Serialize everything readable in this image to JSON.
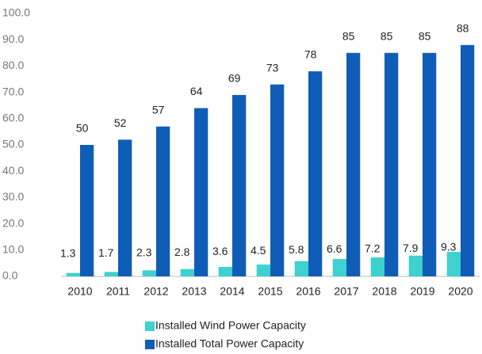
{
  "chart_data": {
    "type": "bar",
    "categories": [
      "2010",
      "2011",
      "2012",
      "2013",
      "2014",
      "2015",
      "2016",
      "2017",
      "2018",
      "2019",
      "2020"
    ],
    "series": [
      {
        "name": "Installed Wind Power Capacity",
        "color": "#3dd1cf",
        "values": [
          1.3,
          1.7,
          2.3,
          2.8,
          3.6,
          4.5,
          5.8,
          6.6,
          7.2,
          7.9,
          9.3
        ]
      },
      {
        "name": "Installed Total Power Capacity",
        "color": "#0f5db7",
        "values": [
          50,
          52,
          57,
          64,
          69,
          73,
          78,
          85,
          85,
          85,
          88
        ]
      }
    ],
    "ylim": [
      0,
      100
    ],
    "yticks": [
      {
        "value": 0,
        "label": "0.0"
      },
      {
        "value": 10,
        "label": "10.0"
      },
      {
        "value": 20,
        "label": "20.0"
      },
      {
        "value": 30,
        "label": "30.0"
      },
      {
        "value": 40,
        "label": "40.0"
      },
      {
        "value": 50,
        "label": "50.0"
      },
      {
        "value": 60,
        "label": "60.0"
      },
      {
        "value": 70,
        "label": "70.0"
      },
      {
        "value": 80,
        "label": "80.0"
      },
      {
        "value": 90,
        "label": "90.0"
      },
      {
        "value": 100,
        "label": "100.0"
      }
    ],
    "grid": false,
    "legend": "bottom"
  }
}
